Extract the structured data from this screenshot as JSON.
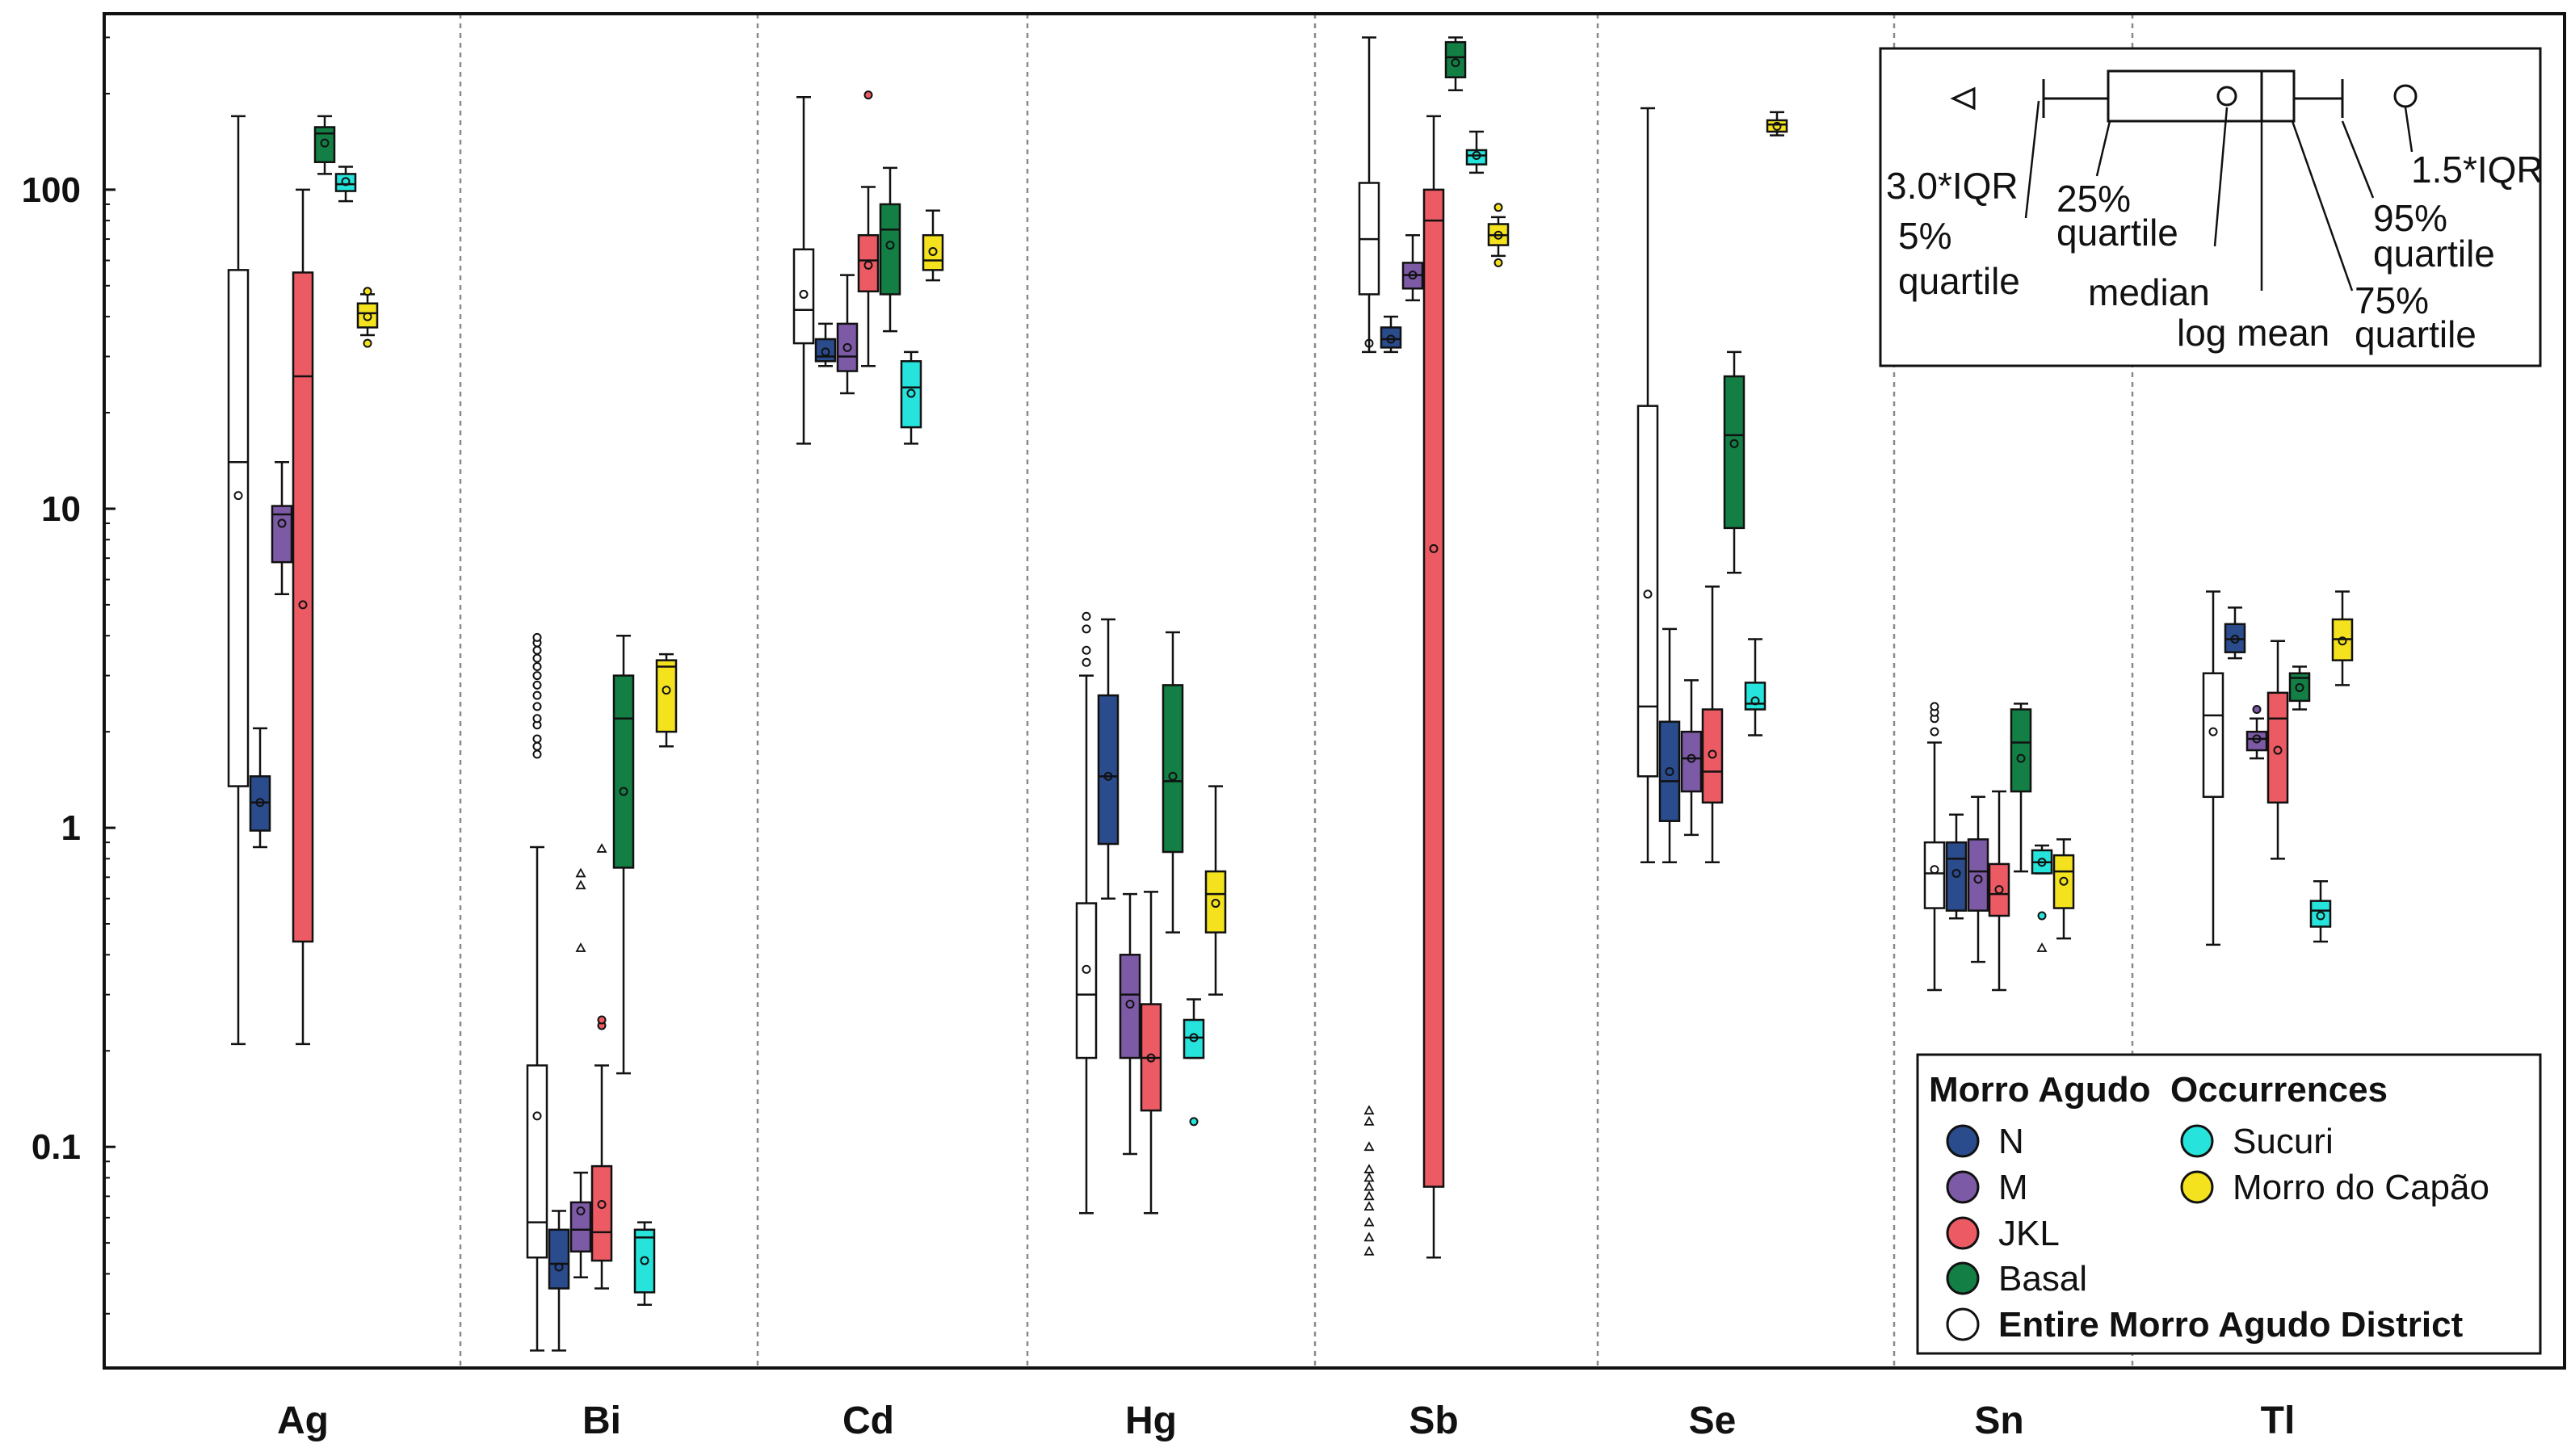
{
  "chart_data": {
    "type": "boxplot",
    "y_scale": "log",
    "ylim": [
      0.022,
      330
    ],
    "y_ticks": [
      {
        "value": 0.1,
        "label": "0.1"
      },
      {
        "value": 1,
        "label": "1"
      },
      {
        "value": 10,
        "label": "10"
      },
      {
        "value": 100,
        "label": "100"
      }
    ],
    "grid": "vertical dotted separators between element groups",
    "categories": [
      "Ag",
      "Bi",
      "Cd",
      "Hg",
      "Sb",
      "Se",
      "Sn",
      "Tl"
    ],
    "series": [
      {
        "key": "E",
        "name": "Entire Morro Agudo District",
        "color": "#ffffff"
      },
      {
        "key": "N",
        "name": "N",
        "color": "#2a4b8c"
      },
      {
        "key": "M",
        "name": "M",
        "color": "#7d5aa6"
      },
      {
        "key": "JKL",
        "name": "JKL",
        "color": "#ec5b63"
      },
      {
        "key": "Basal",
        "name": "Basal",
        "color": "#137f45"
      },
      {
        "key": "Sucuri",
        "name": "Sucuri",
        "color": "#26e3dc"
      },
      {
        "key": "Capao",
        "name": "Morro do Capão",
        "color": "#f4e21e"
      }
    ],
    "legend": {
      "position": "bottom-right",
      "title": "Morro Agudo  Occurrences",
      "entries": [
        "N",
        "M",
        "JKL",
        "Basal",
        "Entire Morro Agudo District",
        "Sucuri",
        "Morro do Capão"
      ]
    },
    "key_box": {
      "position": "top-right",
      "labels": {
        "iqr3": "3.0*IQR",
        "p5_line1": "5%",
        "p5_line2": "quartile",
        "q25_line1": "25%",
        "q25_line2": "quartile",
        "median": "median",
        "logmean": "log mean",
        "q75_line1": "75%",
        "q75_line2": "quartile",
        "p95_line1": "95%",
        "p95_line2": "quartile",
        "iqr15": "1.5*IQR"
      }
    },
    "groups": [
      {
        "element": "Ag",
        "boxes": [
          {
            "series": "E",
            "p5": 0.21,
            "q1": 1.35,
            "median": 14,
            "q3": 56,
            "p95": 170,
            "mean": 11
          },
          {
            "series": "N",
            "p5": 0.87,
            "q1": 0.98,
            "median": 1.2,
            "q3": 1.45,
            "p95": 2.05,
            "mean": 1.2
          },
          {
            "series": "M",
            "p5": 5.4,
            "q1": 6.8,
            "median": 9.6,
            "q3": 10.2,
            "p95": 14,
            "mean": 9
          },
          {
            "series": "JKL",
            "p5": 0.21,
            "q1": 0.44,
            "median": 26,
            "q3": 55,
            "p95": 100,
            "mean": 5
          },
          {
            "series": "Basal",
            "p5": 112,
            "q1": 122,
            "median": 150,
            "q3": 157,
            "p95": 170,
            "mean": 140
          },
          {
            "series": "Sucuri",
            "p5": 92,
            "q1": 99,
            "median": 104,
            "q3": 112,
            "p95": 118,
            "mean": 106
          },
          {
            "series": "Capao",
            "p5": 35,
            "q1": 37,
            "median": 41,
            "q3": 44,
            "p95": 47,
            "mean": 40,
            "outliers": [
              33,
              48
            ]
          }
        ]
      },
      {
        "element": "Bi",
        "boxes": [
          {
            "series": "E",
            "p5": 0.023,
            "q1": 0.045,
            "median": 0.058,
            "q3": 0.18,
            "p95": 0.87,
            "mean": 0.125,
            "outliers": [
              1.7,
              1.8,
              1.9,
              2.1,
              2.2,
              2.4,
              2.6,
              2.8,
              3.0,
              3.2,
              3.4,
              3.6,
              3.8,
              3.95
            ]
          },
          {
            "series": "N",
            "p5": 0.023,
            "q1": 0.036,
            "median": 0.043,
            "q3": 0.055,
            "p95": 0.063,
            "mean": 0.042
          },
          {
            "series": "M",
            "p5": 0.039,
            "q1": 0.047,
            "median": 0.055,
            "q3": 0.067,
            "p95": 0.083,
            "mean": 0.063,
            "outliers_3iqr": [
              0.42,
              0.66,
              0.72
            ]
          },
          {
            "series": "JKL",
            "p5": 0.036,
            "q1": 0.044,
            "median": 0.054,
            "q3": 0.087,
            "p95": 0.18,
            "mean": 0.066,
            "outliers": [
              0.24,
              0.25
            ],
            "outliers_3iqr": [
              0.86
            ]
          },
          {
            "series": "Basal",
            "p5": 0.17,
            "q1": 0.75,
            "median": 2.2,
            "q3": 3.0,
            "p95": 4.0,
            "mean": 1.3
          },
          {
            "series": "Sucuri",
            "p5": 0.032,
            "q1": 0.035,
            "median": 0.052,
            "q3": 0.055,
            "p95": 0.058,
            "mean": 0.044
          },
          {
            "series": "Capao",
            "p5": 1.8,
            "q1": 2.0,
            "median": 3.2,
            "q3": 3.35,
            "p95": 3.5,
            "mean": 2.7
          }
        ]
      },
      {
        "element": "Cd",
        "boxes": [
          {
            "series": "E",
            "p5": 16,
            "q1": 33,
            "median": 42,
            "q3": 65,
            "p95": 195,
            "mean": 47
          },
          {
            "series": "N",
            "p5": 28,
            "q1": 29,
            "median": 30,
            "q3": 34,
            "p95": 38,
            "mean": 31
          },
          {
            "series": "M",
            "p5": 23,
            "q1": 27,
            "median": 30,
            "q3": 38,
            "p95": 54,
            "mean": 32
          },
          {
            "series": "JKL",
            "p5": 28,
            "q1": 48,
            "median": 60,
            "q3": 72,
            "p95": 102,
            "mean": 58,
            "outliers": [
              198
            ]
          },
          {
            "series": "Basal",
            "p5": 36,
            "q1": 47,
            "median": 75,
            "q3": 90,
            "p95": 117,
            "mean": 67
          },
          {
            "series": "Sucuri",
            "p5": 16,
            "q1": 18,
            "median": 24,
            "q3": 29,
            "p95": 31,
            "mean": 23
          },
          {
            "series": "Capao",
            "p5": 52,
            "q1": 56,
            "median": 60,
            "q3": 72,
            "p95": 86,
            "mean": 64
          }
        ]
      },
      {
        "element": "Hg",
        "boxes": [
          {
            "series": "E",
            "p5": 0.062,
            "q1": 0.19,
            "median": 0.3,
            "q3": 0.58,
            "p95": 3.0,
            "mean": 0.36,
            "outliers": [
              3.3,
              3.6,
              4.2,
              4.6
            ]
          },
          {
            "series": "N",
            "p5": 0.6,
            "q1": 0.89,
            "median": 1.45,
            "q3": 2.6,
            "p95": 4.5,
            "mean": 1.45
          },
          {
            "series": "M",
            "p5": 0.095,
            "q1": 0.19,
            "median": 0.3,
            "q3": 0.4,
            "p95": 0.62,
            "mean": 0.28
          },
          {
            "series": "JKL",
            "p5": 0.062,
            "q1": 0.13,
            "median": 0.19,
            "q3": 0.28,
            "p95": 0.63,
            "mean": 0.19
          },
          {
            "series": "Basal",
            "p5": 0.47,
            "q1": 0.84,
            "median": 1.4,
            "q3": 2.8,
            "p95": 4.1,
            "mean": 1.45
          },
          {
            "series": "Sucuri",
            "p5": 0.19,
            "q1": 0.19,
            "median": 0.22,
            "q3": 0.25,
            "p95": 0.29,
            "mean": 0.22,
            "outliers": [
              0.12
            ]
          },
          {
            "series": "Capao",
            "p5": 0.3,
            "q1": 0.47,
            "median": 0.62,
            "q3": 0.73,
            "p95": 1.35,
            "mean": 0.58
          }
        ]
      },
      {
        "element": "Sb",
        "boxes": [
          {
            "series": "E",
            "p5": 31,
            "q1": 47,
            "median": 70,
            "q3": 105,
            "p95": 300,
            "mean": 33,
            "outliers_3iqr": [
              0.047,
              0.052,
              0.058,
              0.065,
              0.07,
              0.075,
              0.08,
              0.085,
              0.1,
              0.12,
              0.13
            ]
          },
          {
            "series": "N",
            "p5": 31,
            "q1": 32,
            "median": 34,
            "q3": 37,
            "p95": 40,
            "mean": 34
          },
          {
            "series": "M",
            "p5": 45,
            "q1": 49,
            "median": 54,
            "q3": 59,
            "p95": 72,
            "mean": 54
          },
          {
            "series": "JKL",
            "p5": 0.045,
            "q1": 0.075,
            "median": 80,
            "q3": 100,
            "p95": 170,
            "mean": 7.5
          },
          {
            "series": "Basal",
            "p5": 205,
            "q1": 225,
            "median": 260,
            "q3": 290,
            "p95": 300,
            "mean": 250
          },
          {
            "series": "Sucuri",
            "p5": 113,
            "q1": 120,
            "median": 128,
            "q3": 133,
            "p95": 152,
            "mean": 128
          },
          {
            "series": "Capao",
            "p5": 62,
            "q1": 67,
            "median": 72,
            "q3": 78,
            "p95": 82,
            "mean": 72,
            "outliers": [
              59,
              88
            ]
          }
        ]
      },
      {
        "element": "Se",
        "boxes": [
          {
            "series": "E",
            "p5": 0.78,
            "q1": 1.45,
            "median": 2.4,
            "q3": 21,
            "p95": 180,
            "mean": 5.4
          },
          {
            "series": "N",
            "p5": 0.78,
            "q1": 1.05,
            "median": 1.4,
            "q3": 2.15,
            "p95": 4.2,
            "mean": 1.5
          },
          {
            "series": "M",
            "p5": 0.95,
            "q1": 1.3,
            "median": 1.65,
            "q3": 2.0,
            "p95": 2.9,
            "mean": 1.65
          },
          {
            "series": "JKL",
            "p5": 0.78,
            "q1": 1.2,
            "median": 1.5,
            "q3": 2.35,
            "p95": 5.7,
            "mean": 1.7
          },
          {
            "series": "Basal",
            "p5": 6.3,
            "q1": 8.7,
            "median": 17,
            "q3": 26,
            "p95": 31,
            "mean": 16
          },
          {
            "series": "Sucuri",
            "p5": 1.95,
            "q1": 2.35,
            "median": 2.45,
            "q3": 2.85,
            "p95": 3.9,
            "mean": 2.5
          },
          {
            "series": "Capao",
            "p5": 148,
            "q1": 152,
            "median": 160,
            "q3": 165,
            "p95": 175,
            "mean": 158
          }
        ]
      },
      {
        "element": "Sn",
        "boxes": [
          {
            "series": "E",
            "p5": 0.31,
            "q1": 0.56,
            "median": 0.72,
            "q3": 0.9,
            "p95": 1.85,
            "mean": 0.74,
            "outliers": [
              2.0,
              2.2,
              2.3,
              2.4
            ]
          },
          {
            "series": "N",
            "p5": 0.52,
            "q1": 0.55,
            "median": 0.8,
            "q3": 0.9,
            "p95": 1.1,
            "mean": 0.72
          },
          {
            "series": "M",
            "p5": 0.38,
            "q1": 0.55,
            "median": 0.73,
            "q3": 0.92,
            "p95": 1.25,
            "mean": 0.69
          },
          {
            "series": "JKL",
            "p5": 0.31,
            "q1": 0.53,
            "median": 0.62,
            "q3": 0.77,
            "p95": 1.3,
            "mean": 0.64
          },
          {
            "series": "Basal",
            "p5": 0.73,
            "q1": 1.3,
            "median": 1.85,
            "q3": 2.35,
            "p95": 2.45,
            "mean": 1.65
          },
          {
            "series": "Sucuri",
            "p5": 0.72,
            "q1": 0.72,
            "median": 0.78,
            "q3": 0.85,
            "p95": 0.88,
            "mean": 0.78,
            "outliers": [
              0.53
            ],
            "outliers_3iqr": [
              0.42
            ]
          },
          {
            "series": "Capao",
            "p5": 0.45,
            "q1": 0.56,
            "median": 0.73,
            "q3": 0.82,
            "p95": 0.92,
            "mean": 0.68
          }
        ]
      },
      {
        "element": "Tl",
        "boxes": [
          {
            "series": "E",
            "p5": 0.43,
            "q1": 1.25,
            "median": 2.25,
            "q3": 3.05,
            "p95": 5.5,
            "mean": 2.0
          },
          {
            "series": "N",
            "p5": 3.4,
            "q1": 3.55,
            "median": 3.9,
            "q3": 4.35,
            "p95": 4.9,
            "mean": 3.9
          },
          {
            "series": "M",
            "p5": 1.65,
            "q1": 1.75,
            "median": 1.9,
            "q3": 2.0,
            "p95": 2.2,
            "mean": 1.9,
            "outliers": [
              2.35
            ]
          },
          {
            "series": "JKL",
            "p5": 0.8,
            "q1": 1.2,
            "median": 2.2,
            "q3": 2.65,
            "p95": 3.85,
            "mean": 1.75
          },
          {
            "series": "Basal",
            "p5": 2.35,
            "q1": 2.5,
            "median": 2.95,
            "q3": 3.05,
            "p95": 3.2,
            "mean": 2.75
          },
          {
            "series": "Sucuri",
            "p5": 0.44,
            "q1": 0.49,
            "median": 0.55,
            "q3": 0.59,
            "p95": 0.68,
            "mean": 0.53
          },
          {
            "series": "Capao",
            "p5": 2.8,
            "q1": 3.35,
            "median": 3.9,
            "q3": 4.5,
            "p95": 5.5,
            "mean": 3.85
          }
        ]
      }
    ]
  }
}
